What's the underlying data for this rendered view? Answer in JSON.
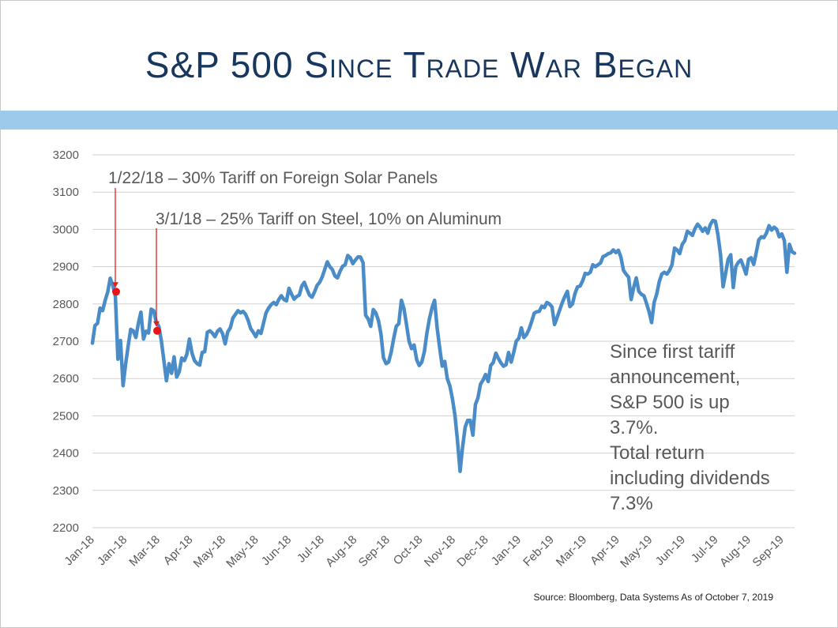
{
  "title": "S&P 500 Since Trade War Began",
  "accent_band_color": "#9dc9eb",
  "title_color": "#17375e",
  "chart_data": {
    "type": "line",
    "title": "S&P 500 Since Trade War Began",
    "ylim": [
      2200,
      3200
    ],
    "yticks": [
      3200,
      3100,
      3000,
      2900,
      2800,
      2700,
      2600,
      2500,
      2400,
      2300,
      2200
    ],
    "xtick_labels": [
      "Jan-18",
      "Jan-18",
      "Mar-18",
      "Apr-18",
      "May-18",
      "May-18",
      "Jun-18",
      "Jul-18",
      "Aug-18",
      "Sep-18",
      "Oct-18",
      "Nov-18",
      "Dec-18",
      "Jan-19",
      "Feb-19",
      "Mar-19",
      "Apr-19",
      "May-19",
      "Jun-19",
      "Jul-19",
      "Aug-19",
      "Sep-19"
    ],
    "grid": true,
    "line_color": "#4a8cc7",
    "series": [
      {
        "values": [
          2695,
          2742,
          2748,
          2789,
          2782,
          2810,
          2832,
          2869,
          2849,
          2820,
          2652,
          2702,
          2581,
          2638,
          2688,
          2732,
          2728,
          2710,
          2748,
          2778,
          2706,
          2727,
          2722,
          2786,
          2782,
          2752,
          2740,
          2701,
          2648,
          2594,
          2640,
          2614,
          2658,
          2604,
          2618,
          2655,
          2648,
          2665,
          2706,
          2668,
          2648,
          2640,
          2636,
          2670,
          2672,
          2724,
          2728,
          2722,
          2712,
          2727,
          2733,
          2720,
          2693,
          2725,
          2736,
          2762,
          2772,
          2782,
          2776,
          2780,
          2772,
          2756,
          2734,
          2724,
          2712,
          2728,
          2721,
          2748,
          2776,
          2789,
          2798,
          2804,
          2798,
          2812,
          2822,
          2812,
          2808,
          2842,
          2826,
          2813,
          2820,
          2824,
          2848,
          2858,
          2840,
          2824,
          2818,
          2832,
          2850,
          2858,
          2872,
          2893,
          2913,
          2900,
          2892,
          2875,
          2870,
          2888,
          2901,
          2905,
          2930,
          2924,
          2908,
          2918,
          2926,
          2926,
          2910,
          2770,
          2760,
          2740,
          2785,
          2776,
          2756,
          2720,
          2656,
          2640,
          2644,
          2670,
          2708,
          2740,
          2747,
          2810,
          2788,
          2746,
          2700,
          2680,
          2690,
          2650,
          2635,
          2644,
          2672,
          2722,
          2760,
          2790,
          2810,
          2737,
          2682,
          2633,
          2646,
          2600,
          2580,
          2546,
          2502,
          2432,
          2351,
          2417,
          2470,
          2488,
          2488,
          2448,
          2530,
          2548,
          2585,
          2596,
          2611,
          2592,
          2635,
          2643,
          2668,
          2654,
          2642,
          2633,
          2637,
          2670,
          2644,
          2670,
          2700,
          2708,
          2736,
          2710,
          2718,
          2732,
          2752,
          2775,
          2779,
          2780,
          2794,
          2790,
          2804,
          2800,
          2792,
          2745,
          2764,
          2784,
          2803,
          2820,
          2834,
          2793,
          2800,
          2828,
          2846,
          2848,
          2862,
          2882,
          2880,
          2885,
          2905,
          2900,
          2905,
          2910,
          2927,
          2930,
          2935,
          2937,
          2945,
          2938,
          2944,
          2925,
          2890,
          2880,
          2872,
          2812,
          2844,
          2870,
          2834,
          2826,
          2822,
          2802,
          2780,
          2750,
          2804,
          2826,
          2860,
          2880,
          2885,
          2880,
          2890,
          2905,
          2950,
          2945,
          2935,
          2960,
          2970,
          2995,
          2990,
          2984,
          3002,
          3014,
          3006,
          2995,
          3004,
          2990,
          3013,
          3024,
          3022,
          2985,
          2932,
          2846,
          2882,
          2920,
          2932,
          2844,
          2900,
          2912,
          2918,
          2900,
          2880,
          2920,
          2924,
          2906,
          2938,
          2972,
          2980,
          2978,
          2990,
          3010,
          2998,
          3006,
          3000,
          2980,
          2988,
          2970,
          2885,
          2960,
          2940,
          2936
        ]
      }
    ],
    "annotations": [
      {
        "text": "1/22/18 – 30% Tariff on Foreign Solar Panels",
        "point_value": 2833
      },
      {
        "text": "3/1/18 – 25% Tariff on Steel, 10% on Aluminum",
        "point_value": 2728
      }
    ]
  },
  "note_lines": [
    "Since first tariff",
    "announcement,",
    "S&P 500 is up",
    "3.7%.",
    "Total return",
    "including dividends",
    "7.3%"
  ],
  "source": "Source:  Bloomberg, Data Systems As of October 7, 2019"
}
